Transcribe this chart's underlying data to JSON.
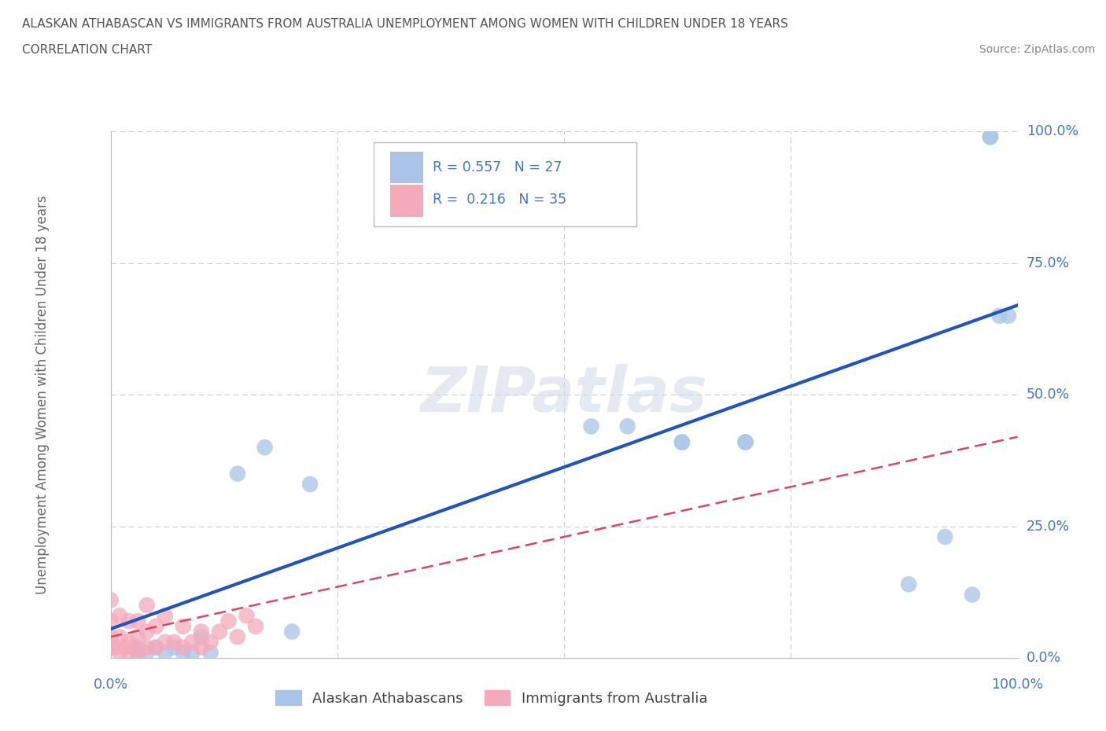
{
  "title_line1": "ALASKAN ATHABASCAN VS IMMIGRANTS FROM AUSTRALIA UNEMPLOYMENT AMONG WOMEN WITH CHILDREN UNDER 18 YEARS",
  "title_line2": "CORRELATION CHART",
  "source_text": "Source: ZipAtlas.com",
  "ylabel": "Unemployment Among Women with Children Under 18 years",
  "watermark": "ZIPatlas",
  "blue_R": 0.557,
  "blue_N": 27,
  "pink_R": 0.216,
  "pink_N": 35,
  "blue_color": "#aac4e8",
  "pink_color": "#f4aabb",
  "blue_line_color": "#2255bb",
  "pink_line_color": "#dd4466",
  "blue_x": [
    0.03,
    0.03,
    0.04,
    0.05,
    0.06,
    0.07,
    0.08,
    0.09,
    0.1,
    0.11,
    0.14,
    0.17,
    0.2,
    0.22,
    0.53,
    0.57,
    0.63,
    0.63,
    0.7,
    0.7,
    0.88,
    0.92,
    0.95,
    0.97,
    0.97,
    0.98,
    0.99
  ],
  "blue_y": [
    0.02,
    0.01,
    0.01,
    0.02,
    0.01,
    0.02,
    0.01,
    0.01,
    0.04,
    0.01,
    0.35,
    0.4,
    0.05,
    0.33,
    0.44,
    0.44,
    0.41,
    0.41,
    0.41,
    0.41,
    0.14,
    0.23,
    0.12,
    0.99,
    0.99,
    0.65,
    0.65
  ],
  "pink_x": [
    0.0,
    0.0,
    0.0,
    0.0,
    0.005,
    0.01,
    0.01,
    0.01,
    0.015,
    0.02,
    0.02,
    0.02,
    0.025,
    0.03,
    0.03,
    0.03,
    0.04,
    0.04,
    0.04,
    0.05,
    0.05,
    0.06,
    0.06,
    0.07,
    0.08,
    0.08,
    0.09,
    0.1,
    0.1,
    0.11,
    0.12,
    0.13,
    0.14,
    0.15,
    0.16
  ],
  "pink_y": [
    0.02,
    0.04,
    0.07,
    0.11,
    0.02,
    0.01,
    0.04,
    0.08,
    0.02,
    0.01,
    0.03,
    0.07,
    0.02,
    0.01,
    0.04,
    0.07,
    0.02,
    0.05,
    0.1,
    0.02,
    0.06,
    0.03,
    0.08,
    0.03,
    0.02,
    0.06,
    0.03,
    0.02,
    0.05,
    0.03,
    0.05,
    0.07,
    0.04,
    0.08,
    0.06
  ],
  "blue_line_x0": 0.0,
  "blue_line_x1": 1.0,
  "blue_line_y0": 0.055,
  "blue_line_y1": 0.67,
  "pink_line_x0": 0.0,
  "pink_line_x1": 1.0,
  "pink_line_y0": 0.04,
  "pink_line_y1": 0.42,
  "xmin": 0.0,
  "xmax": 1.0,
  "ymin": 0.0,
  "ymax": 1.0,
  "ytick_values": [
    0.0,
    0.25,
    0.5,
    0.75,
    1.0
  ],
  "ytick_labels": [
    "0.0%",
    "25.0%",
    "50.0%",
    "75.0%",
    "100.0%"
  ],
  "grid_color": "#cccccc",
  "bg_color": "#ffffff",
  "title_color": "#555555",
  "axis_label_color": "#4477cc",
  "source_color": "#888888"
}
